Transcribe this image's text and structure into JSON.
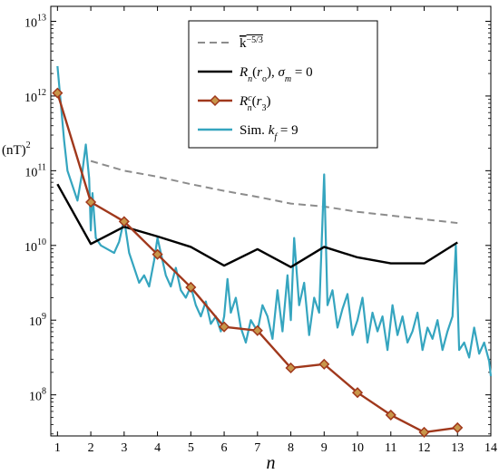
{
  "chart_data": {
    "type": "line",
    "title": "",
    "xlabel": "n",
    "ylabel": "(nT)",
    "ylabel_superscript": "2",
    "xlim": [
      0.8,
      14
    ],
    "ylim_log10": [
      7.45,
      13.2
    ],
    "yscale": "log",
    "x_ticks": [
      "1",
      "2",
      "3",
      "4",
      "5",
      "6",
      "7",
      "8",
      "9",
      "10",
      "11",
      "12",
      "13",
      "14"
    ],
    "y_ticks": [
      {
        "base": "10",
        "exp": "8",
        "log10": 8
      },
      {
        "base": "10",
        "exp": "9",
        "log10": 9
      },
      {
        "base": "10",
        "exp": "10",
        "log10": 10
      },
      {
        "base": "10",
        "exp": "11",
        "log10": 11
      },
      {
        "base": "10",
        "exp": "12",
        "log10": 12
      },
      {
        "base": "10",
        "exp": "13",
        "log10": 13
      }
    ],
    "legend": {
      "placement": "top-right",
      "entries": [
        {
          "series": "kref",
          "label_html": "<tspan text-decoration='overline'>k<tspan baseline-shift='super' font-size='10'>−5/3</tspan></tspan>"
        },
        {
          "series": "Rn",
          "label_html": "<tspan font-style='italic'>R</tspan><tspan font-style='italic' font-size='10' baseline-shift='sub'>n</tspan>(<tspan font-style='italic'>r</tspan><tspan font-size='10' baseline-shift='sub'>o</tspan>), <tspan font-style='italic'>σ</tspan><tspan font-style='italic' font-size='10' baseline-shift='sub'>m</tspan> = 0"
        },
        {
          "series": "Rnc",
          "label_html": "<tspan font-style='italic'>R</tspan><tspan font-style='italic' font-size='10' baseline-shift='super'>c</tspan><tspan font-style='italic' font-size='10' dx='-5' baseline-shift='sub'>n</tspan>(<tspan font-style='italic'>r</tspan><tspan font-size='10' baseline-shift='sub'>3</tspan>)"
        },
        {
          "series": "sim",
          "label_html": "Sim. <tspan font-style='italic'>k</tspan><tspan font-style='italic' font-size='10' baseline-shift='sub'>f</tspan> = 9"
        }
      ]
    },
    "series": [
      {
        "key": "kref",
        "color": "#8c8c8c",
        "style": "dashed",
        "x": [
          2,
          3,
          4,
          5,
          6,
          7,
          8,
          9,
          10,
          11,
          12,
          13
        ],
        "log10_y": [
          11.13,
          11.0,
          10.92,
          10.82,
          10.73,
          10.65,
          10.56,
          10.52,
          10.45,
          10.4,
          10.35,
          10.3
        ]
      },
      {
        "key": "Rn",
        "color": "#000000",
        "style": "solid",
        "x": [
          1,
          2,
          3,
          4,
          5,
          6,
          7,
          8,
          9,
          10,
          11,
          12,
          13
        ],
        "log10_y": [
          10.82,
          10.02,
          10.25,
          10.12,
          9.98,
          9.73,
          9.95,
          9.71,
          9.98,
          9.84,
          9.76,
          9.76,
          10.04
        ]
      },
      {
        "key": "Rnc",
        "color": "#a0381c",
        "marker_fill": "#c8964a",
        "style": "solid",
        "marker": "diamond",
        "x": [
          1,
          2,
          3,
          4,
          5,
          6,
          7,
          8,
          9,
          10,
          11,
          12,
          13
        ],
        "log10_y": [
          12.04,
          10.58,
          10.32,
          9.88,
          9.44,
          8.91,
          8.86,
          8.36,
          8.41,
          8.03,
          7.73,
          7.5,
          7.56
        ]
      },
      {
        "key": "sim",
        "color": "#35a5bf",
        "style": "solid",
        "x": [
          1,
          1.1,
          1.2,
          1.3,
          1.45,
          1.6,
          1.75,
          1.85,
          1.95,
          2.0,
          2.05,
          2.15,
          2.3,
          2.5,
          2.7,
          2.85,
          3.0,
          3.15,
          3.3,
          3.45,
          3.6,
          3.75,
          3.9,
          4.0,
          4.1,
          4.25,
          4.4,
          4.55,
          4.7,
          4.85,
          5.0,
          5.15,
          5.3,
          5.45,
          5.6,
          5.75,
          5.9,
          6.0,
          6.1,
          6.2,
          6.35,
          6.5,
          6.65,
          6.8,
          7.0,
          7.15,
          7.3,
          7.45,
          7.6,
          7.75,
          7.9,
          8.0,
          8.1,
          8.25,
          8.4,
          8.55,
          8.7,
          8.85,
          9.0,
          9.1,
          9.25,
          9.4,
          9.55,
          9.7,
          9.85,
          10.0,
          10.15,
          10.3,
          10.45,
          10.6,
          10.75,
          10.9,
          11.05,
          11.2,
          11.35,
          11.5,
          11.65,
          11.8,
          11.95,
          12.1,
          12.25,
          12.4,
          12.55,
          12.7,
          12.85,
          12.95,
          13.05,
          13.2,
          13.35,
          13.5,
          13.65,
          13.8,
          13.95,
          14.0
        ],
        "log10_y": [
          12.4,
          11.9,
          11.4,
          11.0,
          10.8,
          10.6,
          11.0,
          11.35,
          10.9,
          10.2,
          10.7,
          10.1,
          10.0,
          9.95,
          9.9,
          10.05,
          10.35,
          9.9,
          9.7,
          9.5,
          9.6,
          9.45,
          9.8,
          10.1,
          9.9,
          9.6,
          9.45,
          9.7,
          9.4,
          9.3,
          9.45,
          9.2,
          9.05,
          9.25,
          8.95,
          9.05,
          8.85,
          9.05,
          9.55,
          9.1,
          9.3,
          8.9,
          8.7,
          9.0,
          8.85,
          9.2,
          9.05,
          8.75,
          9.4,
          8.85,
          9.6,
          9.0,
          10.1,
          9.2,
          9.5,
          8.8,
          9.3,
          9.1,
          10.95,
          9.2,
          9.4,
          8.9,
          9.15,
          9.35,
          8.8,
          9.0,
          9.3,
          8.7,
          9.1,
          8.85,
          9.05,
          8.6,
          9.2,
          8.8,
          9.05,
          8.7,
          8.85,
          9.1,
          8.6,
          8.9,
          8.75,
          9.0,
          8.6,
          8.85,
          9.05,
          10.0,
          8.6,
          8.7,
          8.5,
          8.9,
          8.55,
          8.7,
          8.45,
          8.25
        ]
      }
    ]
  }
}
